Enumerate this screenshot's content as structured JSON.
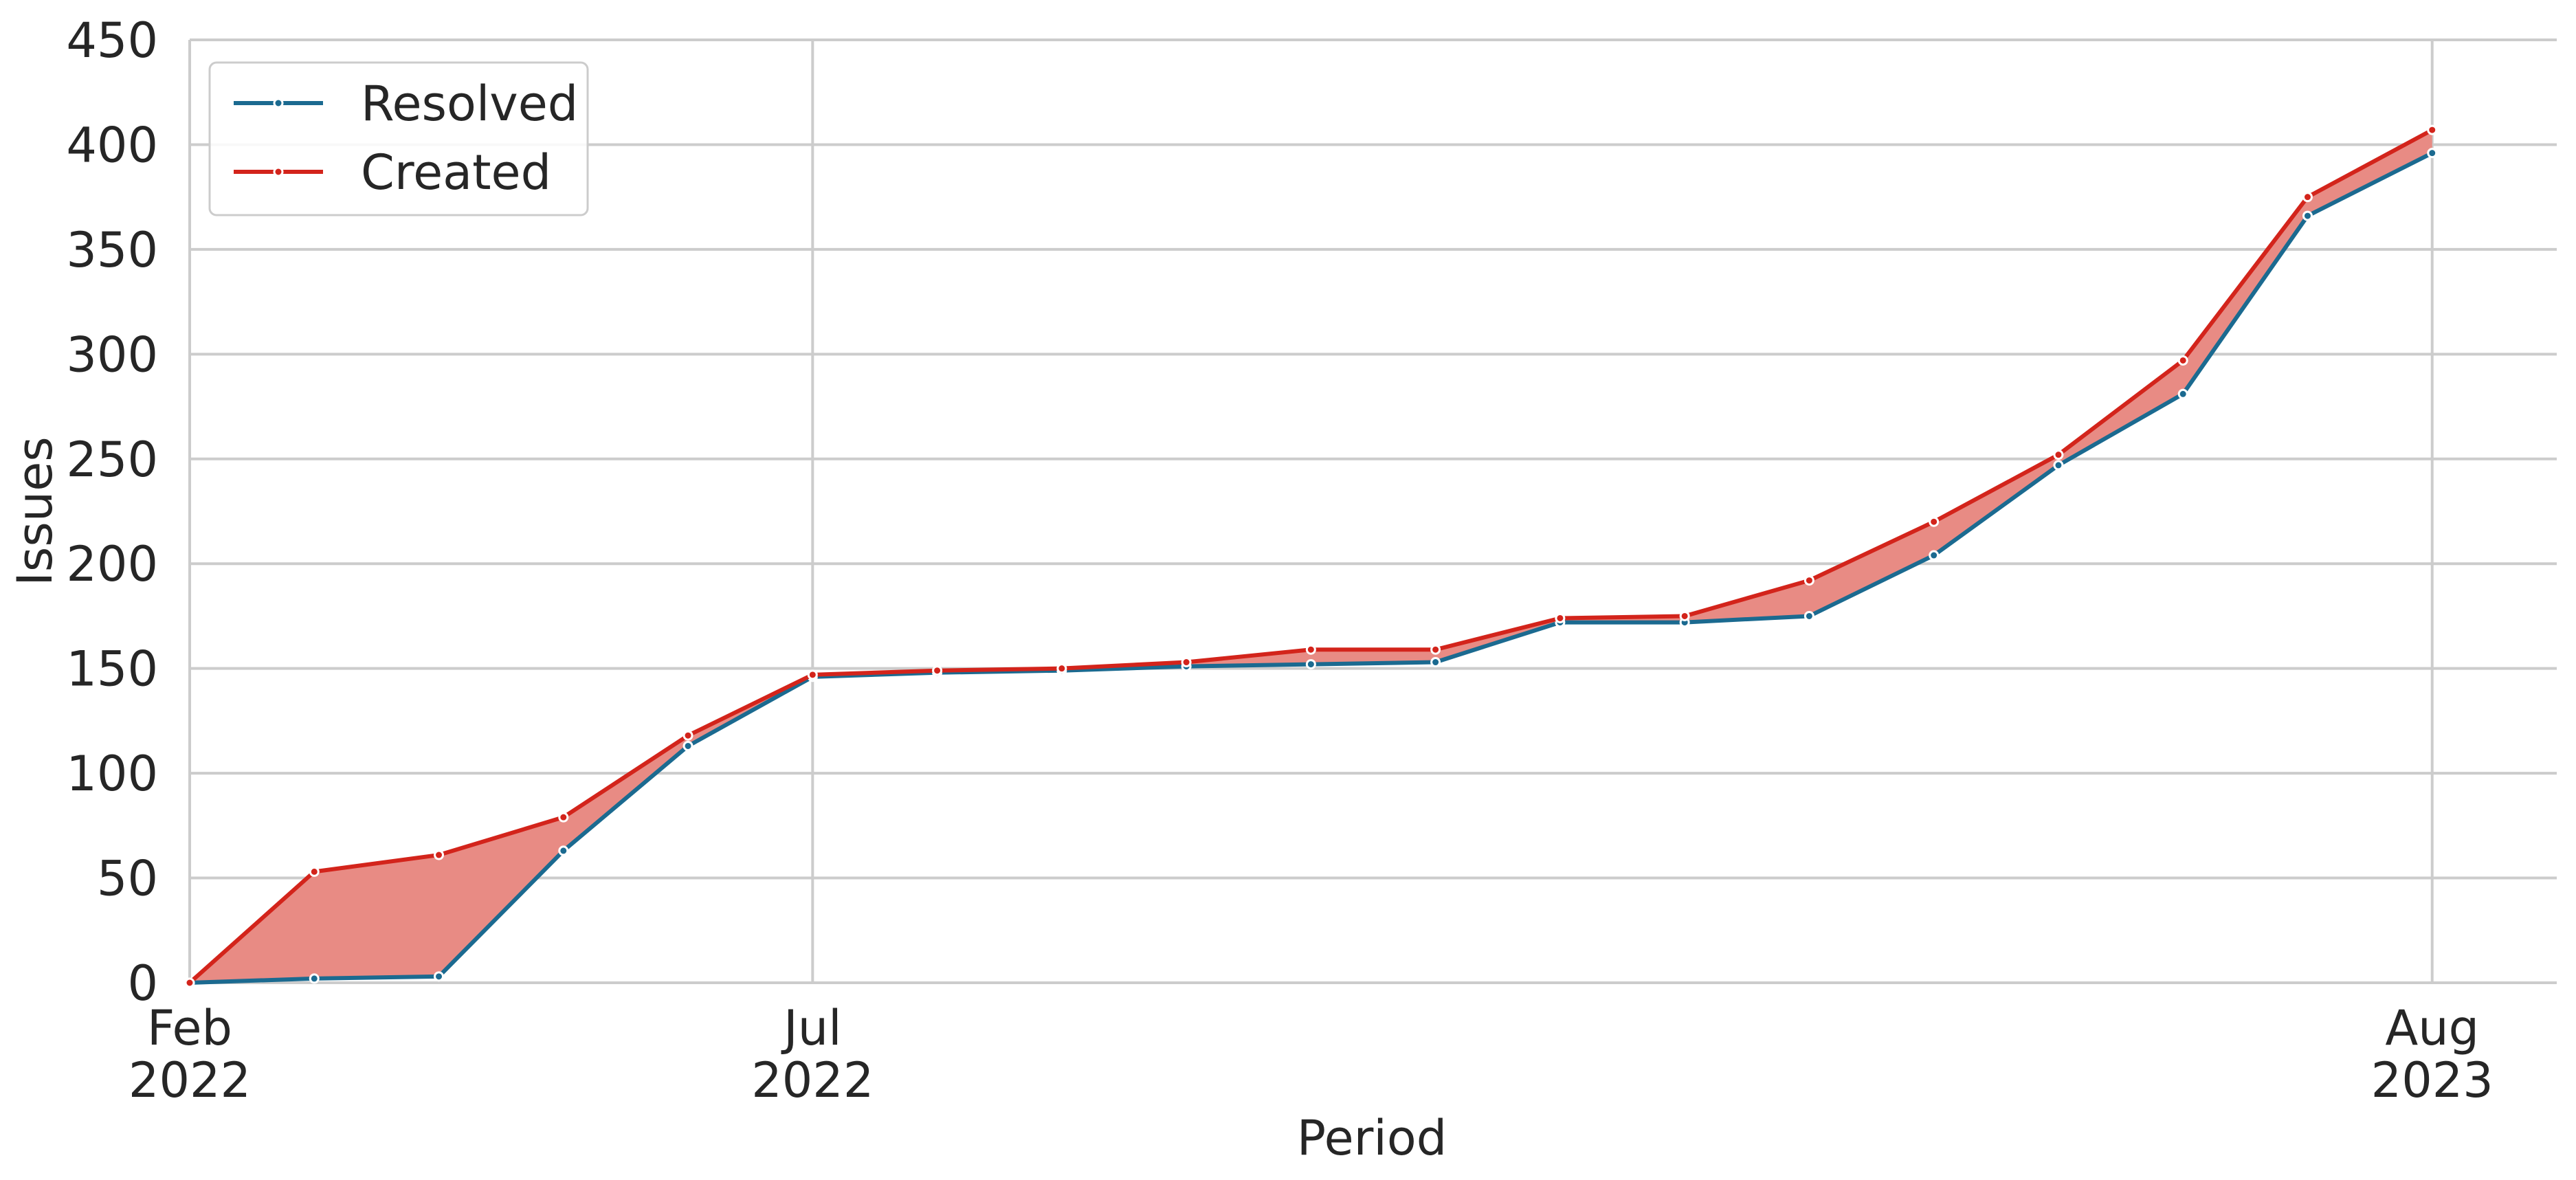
{
  "chart_data": {
    "type": "line",
    "x_label": "Period",
    "y_label": "Issues",
    "x": [
      "2022-02",
      "2022-03",
      "2022-04",
      "2022-05",
      "2022-06",
      "2022-07",
      "2022-08",
      "2022-09",
      "2022-10",
      "2022-11",
      "2022-12",
      "2023-01",
      "2023-02",
      "2023-03",
      "2023-04",
      "2023-05",
      "2023-06",
      "2023-07",
      "2023-08"
    ],
    "series": [
      {
        "name": "Resolved",
        "color": "#1b6a90",
        "values": [
          0,
          2,
          3,
          63,
          113,
          146,
          148,
          149,
          151,
          152,
          153,
          172,
          172,
          175,
          204,
          247,
          281,
          366,
          396
        ]
      },
      {
        "name": "Created",
        "color": "#d3241b",
        "values": [
          0,
          53,
          61,
          79,
          118,
          147,
          149,
          150,
          153,
          159,
          159,
          174,
          175,
          192,
          220,
          252,
          297,
          375,
          407
        ]
      }
    ],
    "fill_between_color": "#e88b84",
    "xlim": [
      "2022-02",
      "2023-09"
    ],
    "xticks": [
      {
        "value": "2022-02",
        "label": "Feb\n2022"
      },
      {
        "value": "2022-07",
        "label": "Jul\n2022"
      },
      {
        "value": "2023-08",
        "label": "Aug\n2023"
      }
    ],
    "ylim": [
      0,
      450
    ],
    "yticks": [
      0,
      50,
      100,
      150,
      200,
      250,
      300,
      350,
      400,
      450
    ],
    "grid": true,
    "legend": "upper left"
  }
}
